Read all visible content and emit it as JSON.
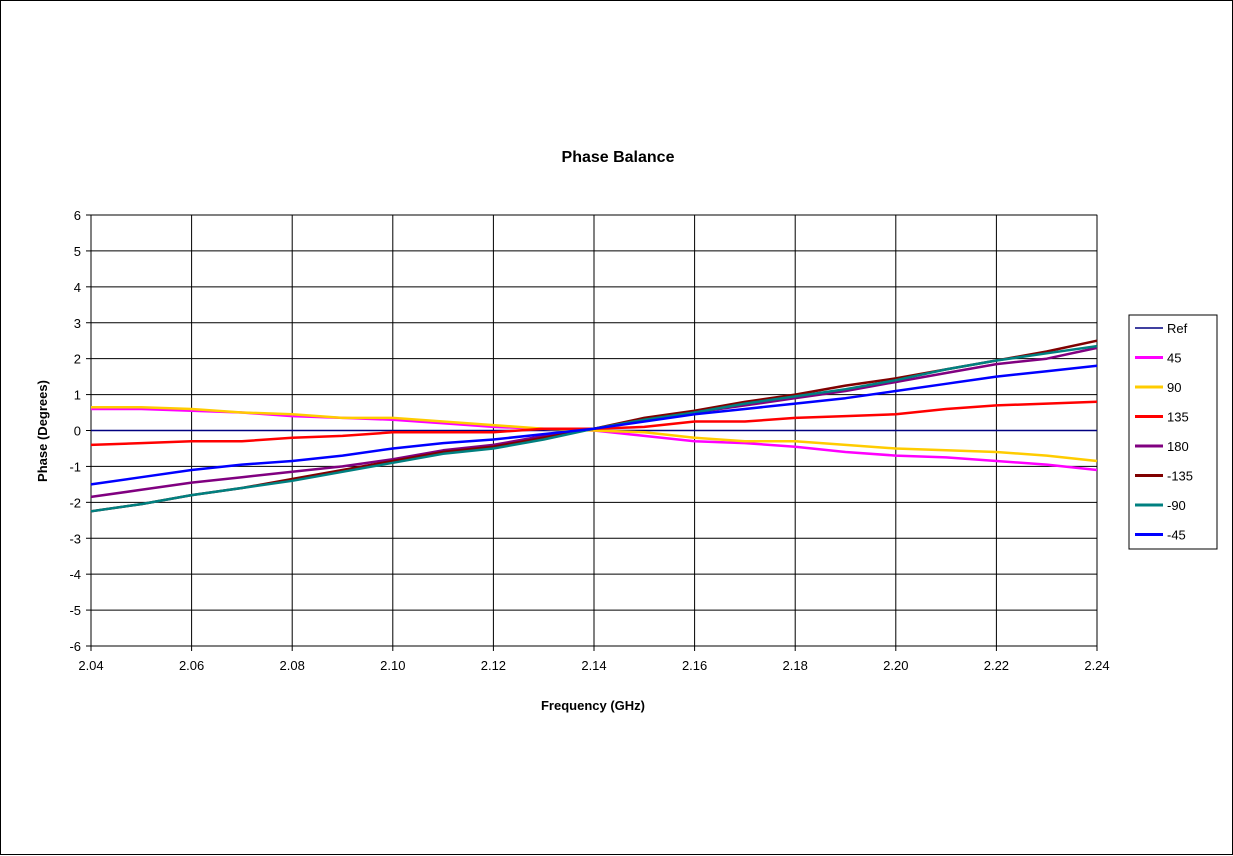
{
  "chart_data": {
    "type": "line",
    "title": "Phase Balance",
    "xlabel": "Frequency (GHz)",
    "ylabel": "Phase (Degrees)",
    "xlim": [
      2.04,
      2.24
    ],
    "ylim": [
      -6,
      6
    ],
    "x_ticks": [
      "2.04",
      "2.06",
      "2.08",
      "2.10",
      "2.12",
      "2.14",
      "2.16",
      "2.18",
      "2.20",
      "2.22",
      "2.24"
    ],
    "y_ticks": [
      "6",
      "5",
      "4",
      "3",
      "2",
      "1",
      "0",
      "-1",
      "-2",
      "-3",
      "-4",
      "-5",
      "-6"
    ],
    "grid": true,
    "legend_position": "right",
    "x": [
      2.04,
      2.05,
      2.06,
      2.07,
      2.08,
      2.09,
      2.1,
      2.11,
      2.12,
      2.13,
      2.14,
      2.15,
      2.16,
      2.17,
      2.18,
      2.19,
      2.2,
      2.21,
      2.22,
      2.23,
      2.24
    ],
    "series": [
      {
        "name": "Ref",
        "color": "#000080",
        "values": [
          0,
          0,
          0,
          0,
          0,
          0,
          0,
          0,
          0,
          0,
          0,
          0,
          0,
          0,
          0,
          0,
          0,
          0,
          0,
          0,
          0
        ]
      },
      {
        "name": "45",
        "color": "#ff00ff",
        "values": [
          0.6,
          0.6,
          0.55,
          0.5,
          0.4,
          0.35,
          0.3,
          0.2,
          0.1,
          0.05,
          0.0,
          -0.15,
          -0.3,
          -0.35,
          -0.45,
          -0.6,
          -0.7,
          -0.75,
          -0.85,
          -0.95,
          -1.1
        ]
      },
      {
        "name": "90",
        "color": "#ffcc00",
        "values": [
          0.65,
          0.65,
          0.6,
          0.5,
          0.45,
          0.35,
          0.35,
          0.25,
          0.15,
          0.05,
          0.0,
          -0.05,
          -0.2,
          -0.3,
          -0.3,
          -0.4,
          -0.5,
          -0.55,
          -0.6,
          -0.7,
          -0.85
        ]
      },
      {
        "name": "135",
        "color": "#ff0000",
        "values": [
          -0.4,
          -0.35,
          -0.3,
          -0.3,
          -0.2,
          -0.15,
          -0.05,
          -0.05,
          -0.05,
          0.05,
          0.05,
          0.1,
          0.25,
          0.25,
          0.35,
          0.4,
          0.45,
          0.6,
          0.7,
          0.75,
          0.8
        ]
      },
      {
        "name": "180",
        "color": "#800080",
        "values": [
          -1.85,
          -1.65,
          -1.45,
          -1.3,
          -1.15,
          -1.0,
          -0.8,
          -0.55,
          -0.4,
          -0.15,
          0.05,
          0.3,
          0.5,
          0.7,
          0.9,
          1.1,
          1.35,
          1.6,
          1.85,
          2.0,
          2.3
        ]
      },
      {
        "name": "-135",
        "color": "#800000",
        "values": [
          -2.25,
          -2.05,
          -1.8,
          -1.6,
          -1.35,
          -1.1,
          -0.85,
          -0.6,
          -0.45,
          -0.2,
          0.05,
          0.35,
          0.55,
          0.8,
          1.0,
          1.25,
          1.45,
          1.7,
          1.95,
          2.2,
          2.5
        ]
      },
      {
        "name": "-90",
        "color": "#008080",
        "values": [
          -2.25,
          -2.05,
          -1.8,
          -1.6,
          -1.4,
          -1.15,
          -0.9,
          -0.65,
          -0.5,
          -0.25,
          0.05,
          0.3,
          0.5,
          0.75,
          0.95,
          1.15,
          1.4,
          1.7,
          1.95,
          2.15,
          2.35
        ]
      },
      {
        "name": "-45",
        "color": "#0000ff",
        "values": [
          -1.5,
          -1.3,
          -1.1,
          -0.95,
          -0.85,
          -0.7,
          -0.5,
          -0.35,
          -0.25,
          -0.1,
          0.05,
          0.25,
          0.45,
          0.6,
          0.75,
          0.9,
          1.1,
          1.3,
          1.5,
          1.65,
          1.8
        ]
      }
    ]
  }
}
